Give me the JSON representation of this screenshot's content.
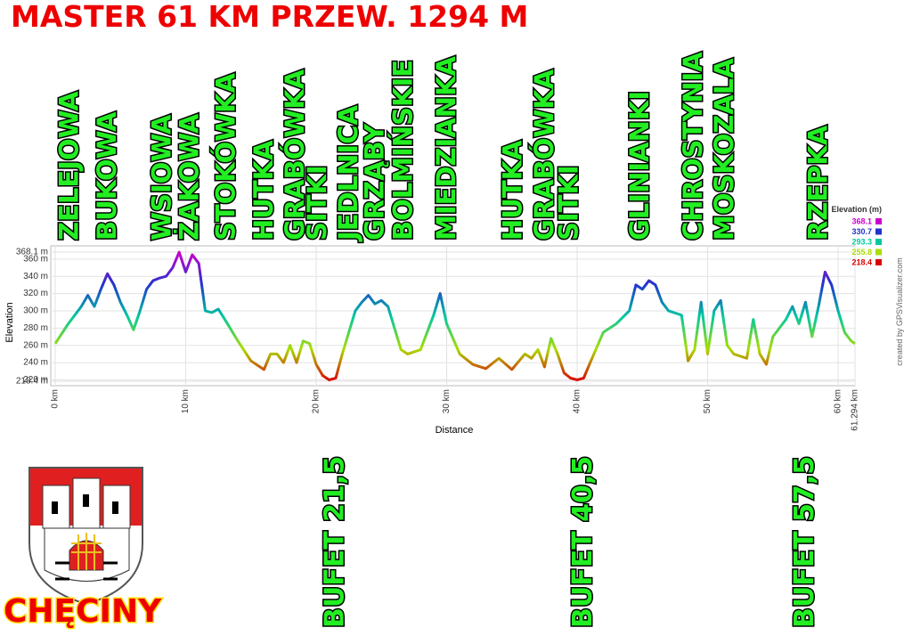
{
  "chart_data": {
    "type": "line",
    "title": "MASTER 61 KM PRZEW. 1294 M",
    "town": "CHĘCINY",
    "xlabel": "Distance",
    "ylabel": "Elevation",
    "credit": "created by GPSVisualizer.com",
    "x": [
      0,
      1,
      2,
      2.5,
      3,
      3.5,
      4,
      4.5,
      5,
      5.5,
      6,
      6.5,
      7,
      7.5,
      8,
      8.5,
      9,
      9.5,
      10,
      10.5,
      11,
      11.5,
      12,
      12.5,
      13,
      14,
      15,
      16,
      16.5,
      17,
      17.5,
      18,
      18.5,
      19,
      19.5,
      20,
      20.5,
      21,
      21.5,
      22,
      23,
      23.5,
      24,
      24.5,
      25,
      25.5,
      26,
      26.5,
      27,
      28,
      29,
      29.5,
      30,
      31,
      32,
      33,
      34,
      35,
      36,
      36.5,
      37,
      37.5,
      38,
      38.5,
      39,
      39.5,
      40,
      40.5,
      41,
      42,
      43,
      44,
      44.5,
      45,
      45.5,
      46,
      46.5,
      47,
      48,
      48.5,
      49,
      49.5,
      50,
      50.5,
      51,
      51.5,
      52,
      53,
      53.5,
      54,
      54.5,
      55,
      56,
      56.5,
      57,
      57.5,
      58,
      58.5,
      59,
      59.5,
      60,
      60.5,
      61,
      61.294
    ],
    "values": [
      262,
      285,
      305,
      318,
      305,
      325,
      343,
      330,
      310,
      295,
      278,
      300,
      325,
      335,
      338,
      340,
      350,
      368,
      345,
      365,
      355,
      300,
      298,
      302,
      290,
      265,
      242,
      232,
      250,
      250,
      240,
      260,
      240,
      265,
      262,
      238,
      225,
      220,
      222,
      250,
      300,
      310,
      318,
      308,
      312,
      305,
      280,
      255,
      250,
      255,
      295,
      320,
      285,
      250,
      238,
      233,
      245,
      232,
      250,
      245,
      255,
      235,
      268,
      250,
      228,
      222,
      220,
      222,
      240,
      275,
      285,
      300,
      330,
      325,
      335,
      330,
      310,
      300,
      295,
      242,
      255,
      310,
      250,
      300,
      312,
      260,
      250,
      245,
      290,
      250,
      238,
      270,
      290,
      305,
      285,
      310,
      270,
      305,
      345,
      330,
      300,
      275,
      265,
      262
    ],
    "xlim": [
      0,
      61.294
    ],
    "ylim": [
      218.4,
      368.1
    ],
    "xticks": [
      {
        "value": 0,
        "label": "0 km"
      },
      {
        "value": 10,
        "label": "10 km"
      },
      {
        "value": 20,
        "label": "20 km"
      },
      {
        "value": 30,
        "label": "30 km"
      },
      {
        "value": 40,
        "label": "40 km"
      },
      {
        "value": 50,
        "label": "50 km"
      },
      {
        "value": 60,
        "label": "60 km"
      },
      {
        "value": 61.294,
        "label": "61.294 km"
      }
    ],
    "yticks": [
      {
        "value": 218.4,
        "label": "218.4 m"
      },
      {
        "value": 220,
        "label": "220 m"
      },
      {
        "value": 240,
        "label": "240 m"
      },
      {
        "value": 260,
        "label": "260 m"
      },
      {
        "value": 280,
        "label": "280 m"
      },
      {
        "value": 300,
        "label": "300 m"
      },
      {
        "value": 320,
        "label": "320 m"
      },
      {
        "value": 340,
        "label": "340 m"
      },
      {
        "value": 360,
        "label": "360 m"
      },
      {
        "value": 368.1,
        "label": "368.1 m"
      }
    ],
    "grid": true,
    "legend_title": "Elevation (m)",
    "colorscale": [
      {
        "value": 368.1,
        "color": "#cc00cc"
      },
      {
        "value": 330.7,
        "color": "#2233cc"
      },
      {
        "value": 293.3,
        "color": "#00c8a0"
      },
      {
        "value": 255.8,
        "color": "#aadd00"
      },
      {
        "value": 218.4,
        "color": "#dd0000"
      }
    ],
    "places": [
      {
        "label": "ZELEJOWA",
        "x": 1.2
      },
      {
        "label": "BUKOWA",
        "x": 4.1
      },
      {
        "label": "WSIOWA",
        "x": 8.3
      },
      {
        "label": "ŻAKOWA",
        "x": 10.4
      },
      {
        "label": "STOKÓWKA",
        "x": 13.2
      },
      {
        "label": "HUTKA",
        "x": 16.1
      },
      {
        "label": "GRABÓWKA",
        "x": 18.5
      },
      {
        "label": "SITKI",
        "x": 20.2
      },
      {
        "label": "JEDLNICA",
        "x": 22.6
      },
      {
        "label": "GRZĄBY",
        "x": 24.6
      },
      {
        "label": "BOLMIŃSKIE",
        "x": 26.8
      },
      {
        "label": "MIEDZIANKA",
        "x": 30.1
      },
      {
        "label": "HUTKA",
        "x": 35.2
      },
      {
        "label": "GRABÓWKA",
        "x": 37.6
      },
      {
        "label": "SITKI",
        "x": 39.5
      },
      {
        "label": "GLINIANKI",
        "x": 44.9
      },
      {
        "label": "CHROSTYNIA",
        "x": 49.0
      },
      {
        "label": "MOSKOZALA",
        "x": 51.4
      },
      {
        "label": "RZEPKA",
        "x": 58.6
      }
    ],
    "bufets": [
      {
        "label": "BUFET 21,5",
        "x": 21.5
      },
      {
        "label": "BUFET 40,5",
        "x": 40.5
      },
      {
        "label": "BUFET 57,5",
        "x": 57.5
      }
    ]
  }
}
